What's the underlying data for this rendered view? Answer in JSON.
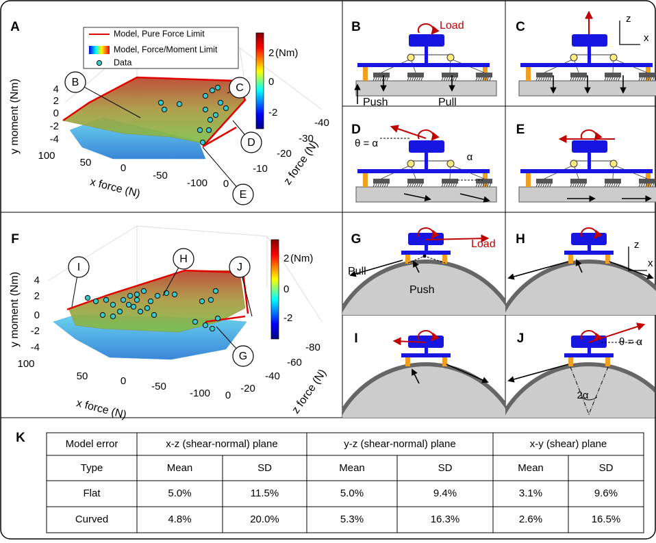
{
  "panel_a": {
    "label": "A",
    "legend": [
      "Model, Pure Force Limit",
      "Model, Force/Moment Limit",
      "Data"
    ],
    "colorbar_ticks": [
      2,
      0,
      -2
    ],
    "colorbar_unit": "(Nm)",
    "y_label": "y moment (Nm)",
    "y_ticks": [
      4,
      2,
      0,
      -2,
      -4
    ],
    "x_label": "x force (N)",
    "x_ticks": [
      100,
      50,
      0,
      -50,
      -100
    ],
    "z_label": "z force (N)",
    "z_ticks": [
      -40,
      -30,
      -20,
      -10,
      0
    ],
    "callouts": [
      "B",
      "C",
      "D",
      "E"
    ]
  },
  "panel_b": {
    "label": "B",
    "load": "Load",
    "push": "Push",
    "pull": "Pull"
  },
  "panel_c": {
    "label": "C",
    "axis_z": "z",
    "axis_x": "x"
  },
  "panel_d": {
    "label": "D",
    "angle": "θ = α",
    "alpha": "α"
  },
  "panel_e": {
    "label": "E"
  },
  "panel_f": {
    "label": "F",
    "colorbar_ticks": [
      2,
      0,
      -2
    ],
    "colorbar_unit": "(Nm)",
    "y_label": "y moment (Nm)",
    "y_ticks": [
      4,
      2,
      0,
      -2,
      -4
    ],
    "x_label": "x force (N)",
    "x_ticks": [
      100,
      50,
      0,
      -50,
      -100
    ],
    "z_label": "z force (N)",
    "z_ticks": [
      -80,
      -60,
      -40,
      -20,
      0
    ],
    "callouts": [
      "I",
      "H",
      "J",
      "G"
    ]
  },
  "panel_g": {
    "label": "G",
    "load": "Load",
    "pull": "Pull",
    "push": "Push"
  },
  "panel_h": {
    "label": "H",
    "axis_z": "z",
    "axis_x": "x"
  },
  "panel_i": {
    "label": "I"
  },
  "panel_j": {
    "label": "J",
    "angle": "θ = α",
    "arc": "2α"
  },
  "panel_k": {
    "label": "K",
    "table": {
      "header": [
        "Model error",
        "x-z (shear-normal) plane",
        "y-z (shear-normal) plane",
        "x-y (shear) plane"
      ],
      "subheader": [
        "Type",
        "Mean",
        "SD",
        "Mean",
        "SD",
        "Mean",
        "SD"
      ],
      "rows": [
        [
          "Flat",
          "5.0%",
          "11.5%",
          "5.0%",
          "9.4%",
          "3.1%",
          "9.6%"
        ],
        [
          "Curved",
          "4.8%",
          "20.0%",
          "5.3%",
          "16.3%",
          "2.6%",
          "16.5%"
        ]
      ]
    }
  }
}
